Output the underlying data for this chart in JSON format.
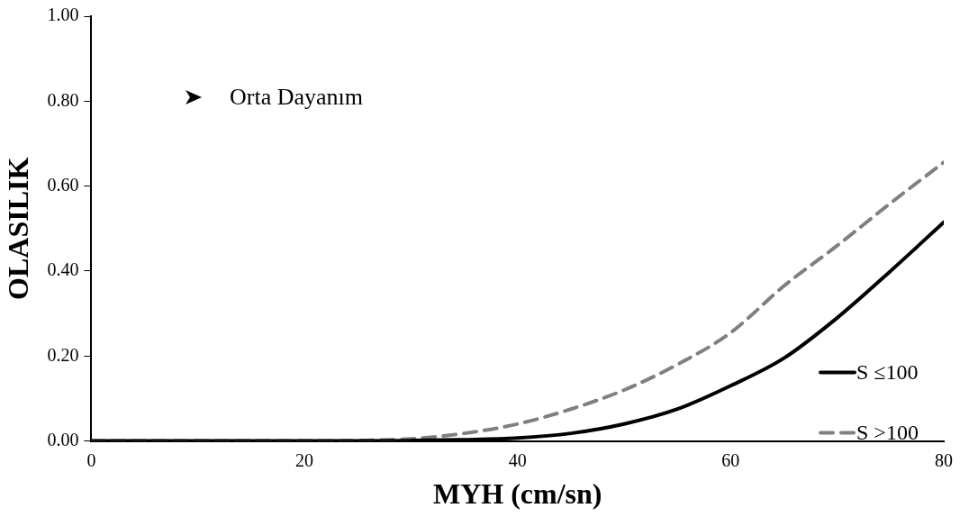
{
  "chart_data": {
    "type": "line",
    "xlabel": "MYH (cm/sn)",
    "ylabel": "OLASILIK",
    "x": [
      0,
      10,
      20,
      25,
      30,
      35,
      40,
      45,
      50,
      55,
      60,
      65,
      70,
      75,
      80
    ],
    "series": [
      {
        "name": "S ≤100",
        "color": "#000000",
        "line_style": "solid",
        "values": [
          0,
          0,
          0,
          0,
          0.001,
          0.003,
          0.007,
          0.018,
          0.04,
          0.075,
          0.13,
          0.195,
          0.29,
          0.4,
          0.515
        ]
      },
      {
        "name": "S >100",
        "color": "#808080",
        "line_style": "dashed",
        "values": [
          0,
          0,
          0,
          0.001,
          0.005,
          0.018,
          0.04,
          0.075,
          0.12,
          0.18,
          0.255,
          0.365,
          0.46,
          0.56,
          0.656
        ]
      }
    ],
    "xlim": [
      0,
      80
    ],
    "xticks": [
      0,
      20,
      40,
      60,
      80
    ],
    "ylim": [
      0,
      1
    ],
    "yticks": [
      {
        "value": 0,
        "label": "0.00"
      },
      {
        "value": 0.2,
        "label": "0.20"
      },
      {
        "value": 0.4,
        "label": "0.40"
      },
      {
        "value": 0.6,
        "label": "0.60"
      },
      {
        "value": 0.8,
        "label": "0.80"
      },
      {
        "value": 1,
        "label": "1.00"
      }
    ],
    "grid": false,
    "legend": "bottom right",
    "marker": "none",
    "annotations": [
      "Orta Dayanım"
    ]
  }
}
